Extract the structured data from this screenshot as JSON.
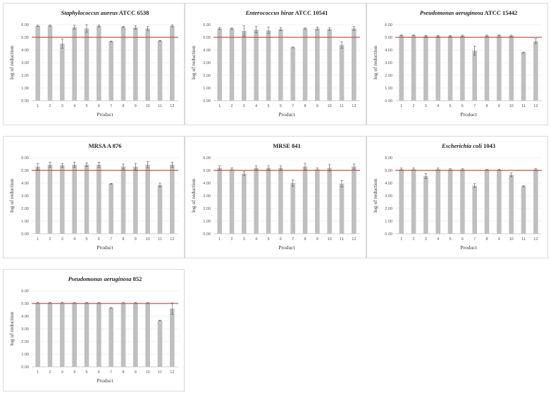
{
  "chart_data": [
    {
      "type": "bar",
      "title": "Staphylococcus aureus ATCC 6538",
      "title_style": "italic-partial",
      "title_italic": "Staphylococcus aureus",
      "title_rest": " ATCC 6538",
      "xlabel": "Product",
      "ylabel": "log of reduction",
      "categories": [
        "1",
        "2",
        "3",
        "4",
        "5",
        "6",
        "7",
        "8",
        "9",
        "10",
        "11",
        "12"
      ],
      "values": [
        5.9,
        5.92,
        4.5,
        5.8,
        5.7,
        5.9,
        4.68,
        5.82,
        5.78,
        5.7,
        4.72,
        5.9
      ],
      "errors": [
        0.05,
        0.04,
        0.35,
        0.15,
        0.3,
        0.08,
        0.03,
        0.05,
        0.15,
        0.15,
        0.03,
        0.08
      ],
      "ylim": [
        0,
        6
      ],
      "yticks": [
        "0.00",
        "1.00",
        "2.00",
        "3.00",
        "4.00",
        "5.00",
        "6.00"
      ],
      "reference_line": 5.0,
      "bar_color": "#bfbfbf",
      "reference_color": "#c0504d"
    },
    {
      "type": "bar",
      "title": "Enterococcus hirae ATCC 10541",
      "title_style": "italic-partial",
      "title_italic": "Enterococcus hirae",
      "title_rest": " ATCC 10541",
      "xlabel": "Product",
      "ylabel": "log of reduction",
      "categories": [
        "1",
        "2",
        "3",
        "4",
        "5",
        "6",
        "7",
        "8",
        "9",
        "10",
        "11",
        "12"
      ],
      "values": [
        5.7,
        5.7,
        5.5,
        5.6,
        5.55,
        5.65,
        4.2,
        5.7,
        5.7,
        5.65,
        4.4,
        5.7
      ],
      "errors": [
        0.08,
        0.05,
        0.4,
        0.25,
        0.25,
        0.12,
        0.03,
        0.05,
        0.12,
        0.1,
        0.25,
        0.15
      ],
      "ylim": [
        0,
        6
      ],
      "yticks": [
        "0.00",
        "1.00",
        "2.00",
        "3.00",
        "4.00",
        "5.00",
        "6.00"
      ],
      "reference_line": 5.0,
      "bar_color": "#bfbfbf",
      "reference_color": "#c0504d"
    },
    {
      "type": "bar",
      "title": "Pseudomonas aeruginosa ATCC 15442",
      "title_style": "italic-partial",
      "title_italic": "Pseudomonas aeruginosa",
      "title_rest": " ATCC 15442",
      "xlabel": "Product",
      "ylabel": "log of reduction",
      "categories": [
        "1",
        "2",
        "3",
        "4",
        "5",
        "6",
        "7",
        "8",
        "9",
        "10",
        "11",
        "12"
      ],
      "values": [
        5.15,
        5.15,
        5.1,
        5.1,
        5.1,
        5.12,
        3.95,
        5.12,
        5.15,
        5.12,
        3.8,
        4.7
      ],
      "errors": [
        0.03,
        0.03,
        0.05,
        0.05,
        0.03,
        0.05,
        0.35,
        0.05,
        0.03,
        0.05,
        0.03,
        0.2
      ],
      "ylim": [
        0,
        6
      ],
      "yticks": [
        "0.00",
        "1.00",
        "2.00",
        "3.00",
        "4.00",
        "5.00",
        "6.00"
      ],
      "reference_line": 5.0,
      "bar_color": "#bfbfbf",
      "reference_color": "#c0504d"
    },
    {
      "type": "bar",
      "title": "MRSA A 876",
      "title_style": "plain",
      "xlabel": "Product",
      "ylabel": "log of reduction",
      "categories": [
        "1",
        "2",
        "3",
        "4",
        "5",
        "6",
        "7",
        "8",
        "9",
        "10",
        "11",
        "12"
      ],
      "values": [
        5.3,
        5.45,
        5.4,
        5.45,
        5.45,
        5.45,
        3.95,
        5.3,
        5.3,
        5.45,
        3.85,
        5.45
      ],
      "errors": [
        0.25,
        0.2,
        0.15,
        0.2,
        0.15,
        0.2,
        0.03,
        0.2,
        0.25,
        0.25,
        0.15,
        0.2
      ],
      "ylim": [
        0,
        6
      ],
      "yticks": [
        "0.00",
        "1.00",
        "2.00",
        "3.00",
        "4.00",
        "5.00",
        "6.00"
      ],
      "reference_line": 5.0,
      "bar_color": "#bfbfbf",
      "reference_color": "#c0504d"
    },
    {
      "type": "bar",
      "title": "MRSE 841",
      "title_style": "plain",
      "xlabel": "Product",
      "ylabel": "log of reduction",
      "categories": [
        "1",
        "2",
        "3",
        "4",
        "5",
        "6",
        "7",
        "8",
        "9",
        "10",
        "11",
        "12"
      ],
      "values": [
        5.2,
        5.1,
        4.75,
        5.2,
        5.2,
        5.2,
        4.0,
        5.3,
        5.1,
        5.2,
        3.95,
        5.3
      ],
      "errors": [
        0.15,
        0.1,
        0.15,
        0.15,
        0.15,
        0.15,
        0.25,
        0.25,
        0.1,
        0.25,
        0.25,
        0.2
      ],
      "ylim": [
        0,
        6
      ],
      "yticks": [
        "0.00",
        "1.00",
        "2.00",
        "3.00",
        "4.00",
        "5.00",
        "6.00"
      ],
      "reference_line": 5.0,
      "bar_color": "#bfbfbf",
      "reference_color": "#c0504d"
    },
    {
      "type": "bar",
      "title": "Escherichia coli 1043",
      "title_style": "italic-partial",
      "title_italic": "Escherichia coli",
      "title_rest": " 1043",
      "xlabel": "Product",
      "ylabel": "log of reduction",
      "categories": [
        "1",
        "2",
        "3",
        "4",
        "5",
        "6",
        "7",
        "8",
        "9",
        "10",
        "11",
        "12"
      ],
      "values": [
        5.1,
        5.1,
        4.55,
        5.1,
        5.08,
        5.08,
        3.8,
        5.05,
        5.05,
        4.65,
        3.75,
        5.08
      ],
      "errors": [
        0.08,
        0.1,
        0.2,
        0.08,
        0.05,
        0.05,
        0.15,
        0.03,
        0.03,
        0.15,
        0.05,
        0.05
      ],
      "ylim": [
        0,
        6
      ],
      "yticks": [
        "0.00",
        "1.00",
        "2.00",
        "3.00",
        "4.00",
        "5.00",
        "6.00"
      ],
      "reference_line": 5.0,
      "bar_color": "#bfbfbf",
      "reference_color": "#c0504d"
    },
    {
      "type": "bar",
      "title": "Pseudomonas aeruginosa 852",
      "title_style": "italic-partial",
      "title_italic": "Pseudomonas aeruginosa",
      "title_rest": " 852",
      "xlabel": "Product",
      "ylabel": "log of reduction",
      "categories": [
        "1",
        "2",
        "3",
        "4",
        "5",
        "6",
        "7",
        "8",
        "9",
        "10",
        "11",
        "12"
      ],
      "values": [
        5.05,
        5.05,
        5.05,
        5.05,
        5.05,
        5.05,
        4.65,
        5.05,
        5.05,
        5.05,
        3.65,
        4.6
      ],
      "errors": [
        0.05,
        0.03,
        0.05,
        0.03,
        0.03,
        0.03,
        0.03,
        0.05,
        0.03,
        0.03,
        0.02,
        0.45
      ],
      "ylim": [
        0,
        6
      ],
      "yticks": [
        "0.00",
        "1.00",
        "2.00",
        "3.00",
        "4.00",
        "5.00",
        "6.00"
      ],
      "reference_line": 5.0,
      "bar_color": "#bfbfbf",
      "reference_color": "#c0504d"
    }
  ]
}
